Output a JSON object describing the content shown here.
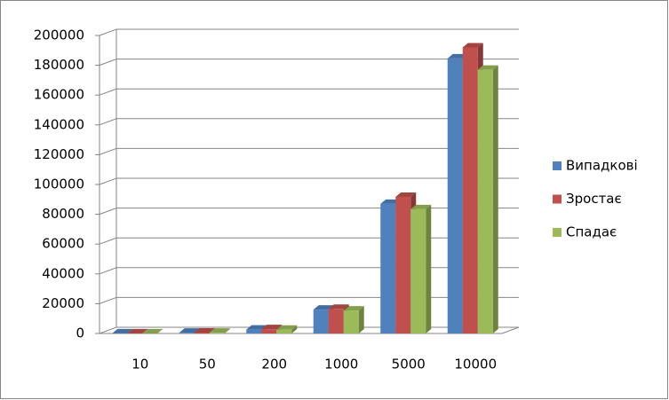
{
  "chart_data": {
    "type": "bar3d",
    "categories": [
      "10",
      "50",
      "200",
      "1000",
      "5000",
      "10000"
    ],
    "series": [
      {
        "name": "Випадкові",
        "color": "#4f81bd",
        "values": [
          50,
          500,
          2600,
          16000,
          87000,
          184600
        ]
      },
      {
        "name": "Зростає",
        "color": "#c0504d",
        "values": [
          60,
          600,
          2900,
          16500,
          91700,
          192000
        ]
      },
      {
        "name": "Спадає",
        "color": "#9bbb59",
        "values": [
          50,
          500,
          2500,
          15400,
          83400,
          177000
        ]
      }
    ],
    "ylim": [
      0,
      200000
    ],
    "yticks": [
      0,
      20000,
      40000,
      60000,
      80000,
      100000,
      120000,
      140000,
      160000,
      180000,
      200000
    ],
    "grid": true,
    "legend": "right"
  }
}
